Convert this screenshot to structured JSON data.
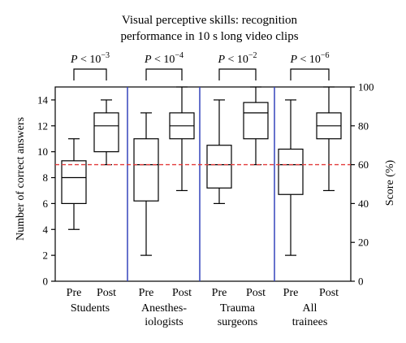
{
  "chart_data": {
    "type": "box",
    "title_line1": "Visual perceptive skills: recognition",
    "title_line2": "performance in 10 s long video clips",
    "ylabel": "Number of correct answers",
    "ylabel_right": "Score (%)",
    "ylim": [
      0,
      15
    ],
    "yticks": [
      "0",
      "2",
      "4",
      "6",
      "8",
      "10",
      "12",
      "14"
    ],
    "yticks_values": [
      0,
      2,
      4,
      6,
      8,
      10,
      12,
      14
    ],
    "right_ticks": [
      "0",
      "20",
      "40",
      "60",
      "80",
      "100"
    ],
    "right_ticks_values": [
      0,
      20,
      40,
      60,
      80,
      100
    ],
    "right_max": 100,
    "threshold": 9,
    "threshold_color": "#e23b3b",
    "separator_color": "#3344bb",
    "groups": [
      {
        "label_lines": [
          "Students"
        ],
        "p_base": "P < 10",
        "p_exp": "−3",
        "boxes": [
          {
            "label": "Pre",
            "min": 4,
            "q1": 6,
            "median": 8,
            "q3": 9.3,
            "max": 11
          },
          {
            "label": "Post",
            "min": 9,
            "q1": 10,
            "median": 12,
            "q3": 13,
            "max": 14
          }
        ]
      },
      {
        "label_lines": [
          "Anesthes-",
          "iologists"
        ],
        "p_base": "P < 10",
        "p_exp": "−4",
        "boxes": [
          {
            "label": "Pre",
            "min": 2,
            "q1": 6.2,
            "median": 9,
            "q3": 11,
            "max": 13
          },
          {
            "label": "Post",
            "min": 7,
            "q1": 11,
            "median": 12,
            "q3": 13,
            "max": 15
          }
        ]
      },
      {
        "label_lines": [
          "Trauma",
          "surgeons"
        ],
        "p_base": "P < 10",
        "p_exp": "−2",
        "boxes": [
          {
            "label": "Pre",
            "min": 6,
            "q1": 7.2,
            "median": 9,
            "q3": 10.5,
            "max": 14
          },
          {
            "label": "Post",
            "min": 9,
            "q1": 11,
            "median": 13,
            "q3": 13.8,
            "max": 15
          }
        ]
      },
      {
        "label_lines": [
          "All",
          "trainees"
        ],
        "p_base": "P < 10",
        "p_exp": "−6",
        "boxes": [
          {
            "label": "Pre",
            "min": 2,
            "q1": 6.7,
            "median": 9,
            "q3": 10.2,
            "max": 14
          },
          {
            "label": "Post",
            "min": 7,
            "q1": 11,
            "median": 12,
            "q3": 13,
            "max": 15
          }
        ]
      }
    ]
  }
}
